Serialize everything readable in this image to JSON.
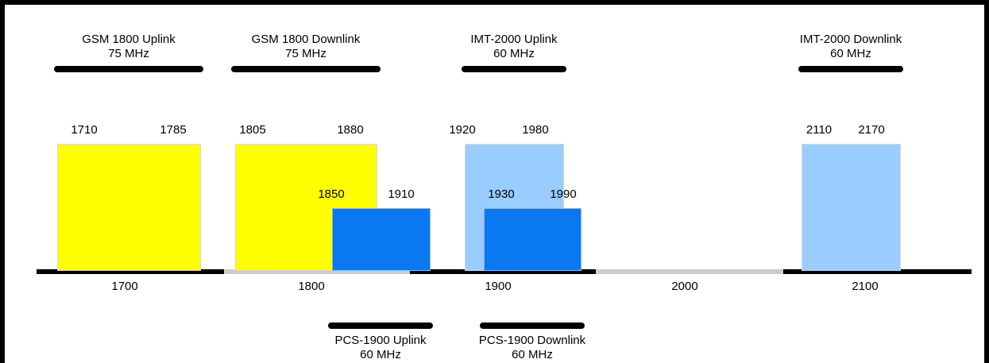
{
  "colors": {
    "gsm": "#ffff00",
    "imt": "#99ccff",
    "pcs": "#0a78f0",
    "axis_dark": "#000000",
    "axis_light": "#cccccc"
  },
  "bands": [
    {
      "id": "gsm-uplink",
      "name": "GSM 1800 Uplink",
      "width": "75 MHz",
      "lower": "1710",
      "upper": "1785"
    },
    {
      "id": "gsm-downlink",
      "name": "GSM 1800 Downlink",
      "width": "75 MHz",
      "lower": "1805",
      "upper": "1880"
    },
    {
      "id": "imt-uplink",
      "name": "IMT-2000 Uplink",
      "width": "60 MHz",
      "lower": "1920",
      "upper": "1980"
    },
    {
      "id": "imt-downlink",
      "name": "IMT-2000 Downlink",
      "width": "60 MHz",
      "lower": "2110",
      "upper": "2170"
    },
    {
      "id": "pcs-uplink",
      "name": "PCS-1900 Uplink",
      "width": "60 MHz",
      "lower": "1850",
      "upper": "1910"
    },
    {
      "id": "pcs-downlink",
      "name": "PCS-1900 Downlink",
      "width": "60 MHz",
      "lower": "1930",
      "upper": "1990"
    }
  ],
  "axis": {
    "ticks": [
      "1700",
      "1800",
      "1900",
      "2000",
      "2100"
    ]
  }
}
